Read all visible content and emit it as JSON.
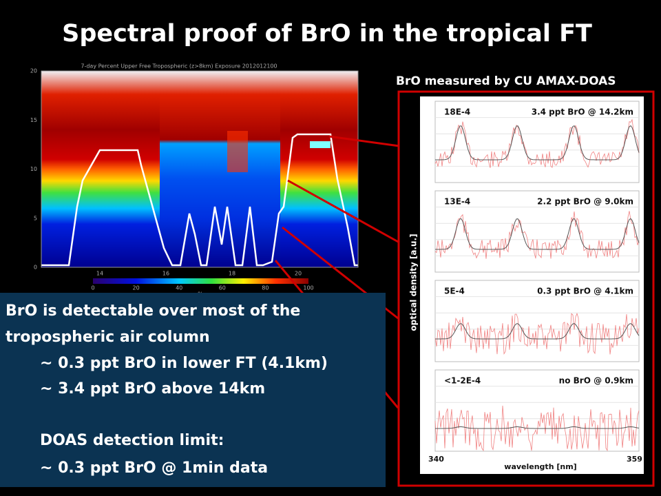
{
  "title": "Spectral proof of BrO in the tropical FT",
  "curtain": {
    "title": "7-day Percent Upper Free Tropospheric (z>8km) Exposure  2012012100",
    "yticks": [
      0,
      5,
      10,
      15,
      20
    ],
    "xticks": [
      14,
      16,
      18,
      20
    ],
    "colorbar_ticks": [
      0,
      20,
      40,
      60,
      80,
      100
    ],
    "colorbar_label": "%"
  },
  "spectra": {
    "heading": "BrO measured by CU AMAX-DOAS",
    "ylabel": "optical density [a.u.]",
    "xlabel": "wavelength [nm]",
    "x_start": "340",
    "x_end": "359",
    "panels": [
      {
        "scale": "18E-4",
        "label": "3.4 ppt BrO @ 14.2km"
      },
      {
        "scale": "13E-4",
        "label": "2.2 ppt BrO @ 9.0km"
      },
      {
        "scale": "5E-4",
        "label": "0.3 ppt BrO @ 4.1km"
      },
      {
        "scale": "<1-2E-4",
        "label": "no BrO @ 0.9km"
      }
    ]
  },
  "textbox": {
    "lines": [
      "BrO is detectable over most of the",
      "tropospheric air column",
      "~ 0.3 ppt BrO in lower FT (4.1km)",
      "~ 3.4 ppt BrO above 14km",
      "DOAS detection limit:",
      "~ 0.3 ppt BrO @ 1min data"
    ]
  }
}
